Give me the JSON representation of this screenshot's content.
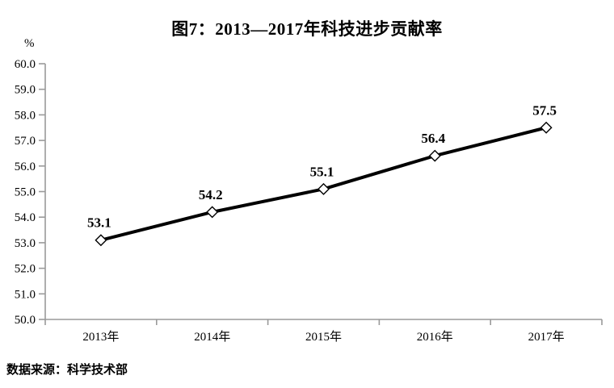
{
  "page": {
    "background": "#ffffff"
  },
  "chart_data": {
    "type": "line",
    "title": "图7：2013—2017年科技进步贡献率",
    "unit_label": "%",
    "xlabel": "",
    "ylabel": "%",
    "categories": [
      "2013年",
      "2014年",
      "2015年",
      "2016年",
      "2017年"
    ],
    "values": [
      53.1,
      54.2,
      55.1,
      56.4,
      57.5
    ],
    "data_labels": [
      "53.1",
      "54.2",
      "55.1",
      "56.4",
      "57.5"
    ],
    "ylim": [
      50.0,
      60.0
    ],
    "y_tick_step": 1.0,
    "y_tick_labels": [
      "50.0",
      "51.0",
      "52.0",
      "53.0",
      "54.0",
      "55.0",
      "56.0",
      "57.0",
      "58.0",
      "59.0",
      "60.0"
    ],
    "grid": "off",
    "legend": "none",
    "line_color": "#000000",
    "marker_style": "diamond",
    "marker_fill": "#ffffff",
    "marker_stroke": "#000000",
    "axis_color": "#9a9a9a"
  },
  "source_note": "数据来源：科学技术部"
}
